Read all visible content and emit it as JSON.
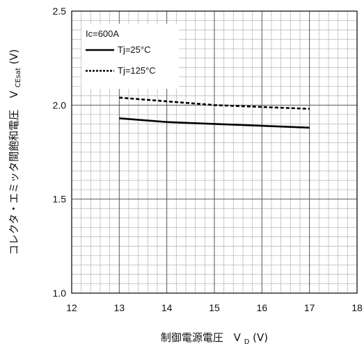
{
  "chart_data": {
    "type": "line",
    "xlabel": {
      "main": "制御電源電圧",
      "symbol": "V",
      "subscript": "D",
      "unit": " (V)"
    },
    "ylabel": {
      "main": "コレクタ・エミッタ間飽和電圧",
      "symbol": "V",
      "subscript": "CEsat",
      "unit": "(V)"
    },
    "xlim": [
      12,
      18
    ],
    "ylim": [
      1.0,
      2.5
    ],
    "xticks": [
      "12",
      "13",
      "14",
      "15",
      "16",
      "17",
      "18"
    ],
    "yticks": [
      "1.0",
      "1.5",
      "2.0",
      "2.5"
    ],
    "grid": true,
    "annotation": "Ic=600A",
    "legend_position": "top-left",
    "series": [
      {
        "name": "Tj=25°C",
        "style": "solid",
        "color": "#000000",
        "x": [
          13,
          14,
          15,
          16,
          17
        ],
        "y": [
          1.93,
          1.91,
          1.9,
          1.89,
          1.88
        ]
      },
      {
        "name": "Tj=125°C",
        "style": "dotted",
        "color": "#000000",
        "x": [
          13,
          14,
          15,
          16,
          17
        ],
        "y": [
          2.04,
          2.02,
          2.0,
          1.99,
          1.98
        ]
      }
    ]
  }
}
